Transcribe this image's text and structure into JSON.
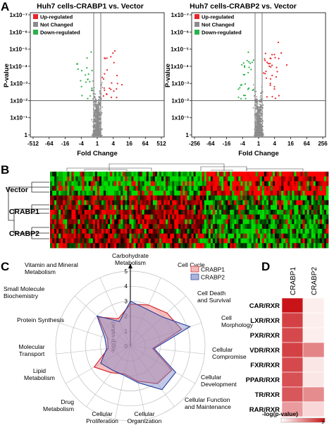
{
  "panels": {
    "A": {
      "letter": "A",
      "plots": [
        {
          "title": "Huh7 cells-CRABP1 vs. Vector",
          "xlabel": "Fold Change",
          "ylabel": "P-value",
          "xticks": [
            "-512",
            "-64",
            "-16",
            "-4",
            "1",
            "4",
            "16",
            "64",
            "512"
          ],
          "yticks": [
            "1x10⁻⁷",
            "1x10⁻⁶",
            "1x10⁻⁵",
            "1x10⁻⁴",
            "1x10⁻³",
            "1x10⁻²",
            "1x10⁻¹",
            "1"
          ],
          "legend": [
            "Up-regulated",
            "Not Changed",
            "Down-regulated"
          ]
        },
        {
          "title": "Huh7 cells-CRABP2 vs. Vector",
          "xlabel": "Fold Change",
          "ylabel": "P-value",
          "xticks": [
            "-256",
            "-64",
            "-16",
            "-4",
            "1",
            "4",
            "16",
            "64",
            "256"
          ],
          "yticks": [
            "1x10⁻⁷",
            "1x10⁻⁶",
            "1x10⁻⁵",
            "1x10⁻⁴",
            "1x10⁻³",
            "1x10⁻²",
            "1x10⁻¹",
            "1"
          ],
          "legend": [
            "Up-regulated",
            "Not Changed",
            "Down-regulated"
          ]
        }
      ],
      "colors": {
        "up": "#e8262a",
        "not": "#8c8c8c",
        "down": "#2bb24c"
      }
    },
    "B": {
      "letter": "B",
      "rows": [
        "Vector",
        "CRABP1",
        "CRABP2"
      ]
    },
    "C": {
      "letter": "C",
      "ylabel": "-log(p-value)",
      "legend": [
        {
          "label": "CRABP1",
          "color": "#f3b9b9"
        },
        {
          "label": "CRABP2",
          "color": "#aab4da"
        }
      ],
      "scale": [
        "0",
        "1",
        "2",
        "3",
        "4",
        "5"
      ],
      "categories": [
        "Carbohydrate Metabolism",
        "Cell Cycle",
        "Cell Death and Survival",
        "Cell Morphology",
        "Cellular Compromise",
        "Cellular Development",
        "Cellular Function and Maintenance",
        "Cellular Organization",
        "Cellular Proliferation",
        "Drug Metabolism",
        "Lipid Metabolism",
        "Molecular Transport",
        "Protein Synthesis",
        "Small Molecule Biochemistry",
        "Vitamin and Mineral Metabolism"
      ]
    },
    "D": {
      "letter": "D",
      "columns": [
        "CRABP1",
        "CRABP2"
      ],
      "rows": [
        "CAR/RXR",
        "LXR/RXR",
        "PXR/RXR",
        "VDR/RXR",
        "FXR/RXR",
        "PPAR/RXR",
        "TR/RXR",
        "RAR/RXR"
      ],
      "colorbar_label": "-log(p-value)",
      "colorbar_ticks": [
        "0",
        "3"
      ]
    }
  },
  "chart_data": [
    {
      "type": "scatter",
      "title": "Huh7 cells-CRABP1 vs. Vector",
      "xlabel": "Fold Change",
      "ylabel": "P-value",
      "x_scale": "log2 fold change",
      "y_scale": "log p-value, reversed",
      "series": [
        {
          "name": "Up-regulated"
        },
        {
          "name": "Not Changed"
        },
        {
          "name": "Down-regulated"
        }
      ],
      "thresholds": {
        "fold_change": [
          -2,
          2
        ],
        "p_value": 0.01
      },
      "legend": "top-left"
    },
    {
      "type": "scatter",
      "title": "Huh7 cells-CRABP2 vs. Vector",
      "xlabel": "Fold Change",
      "ylabel": "P-value",
      "x_scale": "log2 fold change",
      "y_scale": "log p-value, reversed",
      "series": [
        {
          "name": "Up-regulated"
        },
        {
          "name": "Not Changed"
        },
        {
          "name": "Down-regulated"
        }
      ],
      "thresholds": {
        "fold_change": [
          -2,
          2
        ],
        "p_value": 0.01
      },
      "legend": "top-left"
    },
    {
      "type": "radar",
      "ylabel": "-log(p-value)",
      "range": [
        0,
        5
      ],
      "categories": [
        "Carbohydrate Metabolism",
        "Cell Cycle",
        "Cell Death and Survival",
        "Cell Morphology",
        "Cellular Compromise",
        "Cellular Development",
        "Cellular Function and Maintenance",
        "Cellular Organization",
        "Cellular Proliferation",
        "Drug Metabolism",
        "Lipid Metabolism",
        "Molecular Transport",
        "Protein Synthesis",
        "Small Molecule Biochemistry",
        "Vitamin and Mineral Metabolism"
      ],
      "series": [
        {
          "name": "CRABP1",
          "values": [
            2.8,
            3.0,
            3.3,
            3.6,
            1.5,
            3.2,
            3.1,
            2.4,
            1.9,
            2.2,
            2.8,
            1.5,
            1.6,
            2.9,
            2.0
          ]
        },
        {
          "name": "CRABP2",
          "values": [
            3.0,
            2.7,
            2.9,
            4.2,
            1.6,
            3.5,
            3.6,
            2.5,
            2.0,
            2.0,
            2.3,
            1.6,
            1.8,
            3.0,
            1.8
          ]
        }
      ],
      "legend": "top-right"
    },
    {
      "type": "heatmap",
      "columns": [
        "CRABP1",
        "CRABP2"
      ],
      "rows": [
        "CAR/RXR",
        "LXR/RXR",
        "PXR/RXR",
        "VDR/RXR",
        "FXR/RXR",
        "PPAR/RXR",
        "TR/RXR",
        "RAR/RXR"
      ],
      "values": [
        [
          3.0,
          0.1
        ],
        [
          2.4,
          0.1
        ],
        [
          2.3,
          0.1
        ],
        [
          2.4,
          1.5
        ],
        [
          2.3,
          0.2
        ],
        [
          2.2,
          0.2
        ],
        [
          2.1,
          1.4
        ],
        [
          1.2,
          0.4
        ]
      ],
      "colorbar_label": "-log(p-value)",
      "range": [
        0,
        3
      ]
    }
  ]
}
